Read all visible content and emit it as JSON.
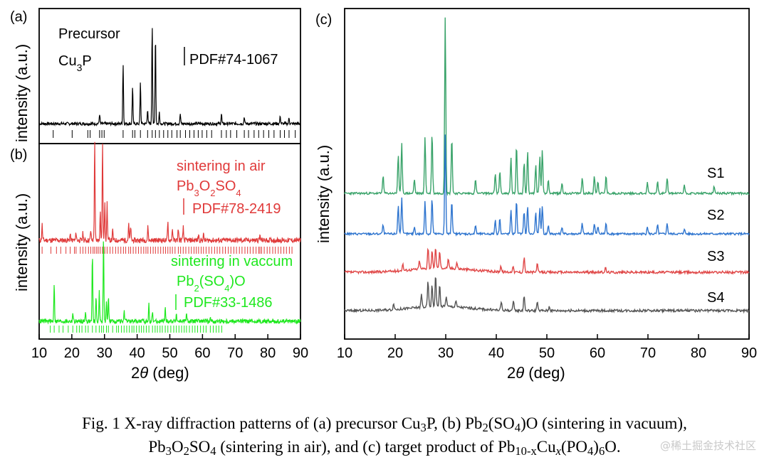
{
  "chart_data": [
    {
      "panel": "(a)",
      "type": "line",
      "title": "Precursor Cu3P",
      "sample": "Precursor",
      "formula": [
        "Cu",
        "3",
        "P"
      ],
      "xlabel_prefix": "2",
      "xlabel_theta": "θ",
      "xlabel_suffix": " (deg)",
      "ylabel": "intensity (a.u.)",
      "x_range": [
        10,
        90
      ],
      "reference": "PDF#74-1067",
      "color": "#000000",
      "peaks": [
        [
          28.5,
          0.1
        ],
        [
          35.7,
          0.6
        ],
        [
          38.6,
          0.38
        ],
        [
          41.0,
          0.42
        ],
        [
          43.2,
          0.15
        ],
        [
          44.6,
          1.0
        ],
        [
          45.6,
          0.9
        ],
        [
          46.8,
          0.12
        ],
        [
          53.2,
          0.1
        ],
        [
          65.8,
          0.1
        ],
        [
          72.8,
          0.07
        ],
        [
          83.8,
          0.08
        ],
        [
          86.5,
          0.06
        ]
      ],
      "ref_lines": [
        14.3,
        20.1,
        24.9,
        25.6,
        28.5,
        29.2,
        29.9,
        35.7,
        38.6,
        39.3,
        41.0,
        43.2,
        44.6,
        45.6,
        46.8,
        48.1,
        49.4,
        50.6,
        52.2,
        53.2,
        54.8,
        56.1,
        57.4,
        58.7,
        59.9,
        61.3,
        62.8,
        65.8,
        67.3,
        68.6,
        70.5,
        72.8,
        74.1,
        75.8,
        77.2,
        78.7,
        80.3,
        81.9,
        83.8,
        85.1,
        86.5,
        88.4
      ]
    },
    {
      "panel": "(b)",
      "type": "line",
      "ylabel": "intensity (a.u.)",
      "x_range": [
        10,
        90
      ],
      "x_ticks": [
        10,
        20,
        30,
        40,
        50,
        60,
        70,
        80,
        90
      ],
      "series": [
        {
          "name": "sintering in air",
          "formula": [
            "Pb",
            "3",
            "O",
            "2",
            "SO",
            "4"
          ],
          "reference": "PDF#78-2419",
          "color": "#e03a3a",
          "peaks": [
            [
              10.9,
              0.16
            ],
            [
              19.5,
              0.06
            ],
            [
              21.3,
              0.08
            ],
            [
              23.4,
              0.07
            ],
            [
              25.8,
              0.1
            ],
            [
              27.0,
              1.0
            ],
            [
              28.7,
              0.3
            ],
            [
              29.4,
              0.98
            ],
            [
              30.1,
              0.4
            ],
            [
              30.8,
              0.38
            ],
            [
              32.5,
              0.1
            ],
            [
              37.4,
              0.16
            ],
            [
              38.0,
              0.14
            ],
            [
              43.3,
              0.14
            ],
            [
              49.4,
              0.18
            ],
            [
              50.8,
              0.12
            ],
            [
              52.6,
              0.12
            ],
            [
              54.1,
              0.13
            ],
            [
              58.8,
              0.06
            ],
            [
              60.3,
              0.06
            ],
            [
              77.6,
              0.05
            ]
          ],
          "ref_lines": [
            10.9,
            13.6,
            15.3,
            16.6,
            18.2,
            19.5,
            20.8,
            21.3,
            22.6,
            23.4,
            24.2,
            25.1,
            25.8,
            26.5,
            27.0,
            27.6,
            28.1,
            28.7,
            29.4,
            30.1,
            30.8,
            31.7,
            32.5,
            33.4,
            34.2,
            35.0,
            35.8,
            36.5,
            37.4,
            38.0,
            38.8,
            39.6,
            40.4,
            41.2,
            42.0,
            42.7,
            43.3,
            44.1,
            44.9,
            45.6,
            46.4,
            47.2,
            48.0,
            48.7,
            49.4,
            50.1,
            50.8,
            51.6,
            52.6,
            53.3,
            54.1,
            54.9,
            55.8,
            56.6,
            57.4,
            58.1,
            58.8,
            59.6,
            60.3,
            61.1,
            62.0,
            62.8,
            63.7,
            64.5,
            65.3,
            66.2,
            67.0,
            67.9,
            68.7,
            69.6,
            70.4,
            71.3,
            72.1,
            73.0,
            73.8,
            74.6,
            75.5,
            76.4,
            77.2,
            77.6,
            78.1,
            78.9,
            79.8,
            80.6,
            81.5,
            82.3,
            83.2,
            84.0,
            84.9,
            85.7,
            86.6,
            87.4
          ]
        },
        {
          "name": "sintering in vaccum",
          "formula": [
            "Pb",
            "2",
            "(SO",
            "4",
            ")O"
          ],
          "reference": "PDF#33-1486",
          "color": "#1ee81e",
          "peaks": [
            [
              14.6,
              0.45
            ],
            [
              20.3,
              0.1
            ],
            [
              24.2,
              0.12
            ],
            [
              26.3,
              0.78
            ],
            [
              27.4,
              0.3
            ],
            [
              28.4,
              0.35
            ],
            [
              29.7,
              1.0
            ],
            [
              30.6,
              0.22
            ],
            [
              31.2,
              0.3
            ],
            [
              36.0,
              0.12
            ],
            [
              43.6,
              0.2
            ],
            [
              44.7,
              0.12
            ],
            [
              48.6,
              0.15
            ],
            [
              52.0,
              0.1
            ],
            [
              55.1,
              0.08
            ],
            [
              62.4,
              0.06
            ]
          ],
          "ref_lines": [
            13.4,
            14.6,
            16.1,
            17.3,
            18.9,
            20.3,
            21.5,
            22.3,
            23.1,
            24.2,
            25.0,
            26.3,
            27.4,
            28.4,
            29.1,
            29.7,
            30.6,
            31.2,
            32.5,
            33.7,
            34.3,
            35.2,
            36.0,
            36.8,
            37.6,
            38.4,
            39.0,
            39.8,
            40.6,
            41.3,
            42.0,
            42.8,
            43.6,
            44.7,
            45.5,
            46.2,
            47.0,
            47.7,
            48.6,
            49.4,
            50.3,
            51.2,
            52.0,
            52.8,
            53.6,
            54.4,
            55.1,
            56.0,
            56.9,
            57.7,
            58.5,
            59.4,
            60.3,
            61.1,
            62.4,
            63.3,
            64.2,
            65.0,
            65.9
          ]
        }
      ]
    },
    {
      "panel": "(c)",
      "type": "line",
      "xlabel_prefix": "2",
      "xlabel_theta": "θ",
      "xlabel_suffix": " (deg)",
      "ylabel": "intensity (a.u.)",
      "x_range": [
        10,
        90
      ],
      "x_ticks": [
        10,
        20,
        30,
        40,
        50,
        60,
        70,
        80,
        90
      ],
      "series": [
        {
          "name": "S1",
          "color": "#3aa36a",
          "peaks": [
            [
              17.6,
              0.1
            ],
            [
              20.6,
              0.22
            ],
            [
              21.3,
              0.28
            ],
            [
              23.8,
              0.08
            ],
            [
              25.9,
              0.32
            ],
            [
              27.3,
              0.34
            ],
            [
              29.9,
              1.0
            ],
            [
              31.2,
              0.32
            ],
            [
              35.9,
              0.08
            ],
            [
              39.8,
              0.11
            ],
            [
              40.7,
              0.13
            ],
            [
              42.9,
              0.2
            ],
            [
              44.0,
              0.27
            ],
            [
              45.5,
              0.18
            ],
            [
              46.2,
              0.24
            ],
            [
              47.8,
              0.16
            ],
            [
              48.6,
              0.21
            ],
            [
              49.1,
              0.25
            ],
            [
              50.3,
              0.08
            ],
            [
              53.0,
              0.06
            ],
            [
              57.0,
              0.09
            ],
            [
              59.4,
              0.1
            ],
            [
              60.1,
              0.07
            ],
            [
              61.7,
              0.1
            ],
            [
              69.9,
              0.06
            ],
            [
              71.9,
              0.07
            ],
            [
              73.8,
              0.09
            ],
            [
              77.2,
              0.05
            ],
            [
              83.1,
              0.04
            ]
          ]
        },
        {
          "name": "S2",
          "color": "#2f75cf",
          "peaks": [
            [
              17.6,
              0.05
            ],
            [
              20.6,
              0.16
            ],
            [
              21.3,
              0.2
            ],
            [
              23.8,
              0.04
            ],
            [
              25.9,
              0.18
            ],
            [
              27.3,
              0.2
            ],
            [
              29.9,
              0.56
            ],
            [
              31.2,
              0.19
            ],
            [
              35.9,
              0.05
            ],
            [
              39.8,
              0.08
            ],
            [
              40.7,
              0.09
            ],
            [
              42.9,
              0.13
            ],
            [
              44.0,
              0.19
            ],
            [
              45.5,
              0.13
            ],
            [
              46.2,
              0.16
            ],
            [
              47.8,
              0.12
            ],
            [
              48.6,
              0.15
            ],
            [
              49.1,
              0.16
            ],
            [
              50.3,
              0.05
            ],
            [
              53.0,
              0.04
            ],
            [
              57.0,
              0.06
            ],
            [
              59.4,
              0.06
            ],
            [
              60.1,
              0.04
            ],
            [
              61.7,
              0.06
            ],
            [
              69.9,
              0.04
            ],
            [
              71.9,
              0.05
            ],
            [
              73.8,
              0.06
            ],
            [
              77.2,
              0.03
            ]
          ]
        },
        {
          "name": "S3",
          "color": "#e04848",
          "peaks": [
            [
              21.5,
              0.03
            ],
            [
              24.8,
              0.04
            ],
            [
              26.5,
              0.1
            ],
            [
              27.3,
              0.08
            ],
            [
              28.0,
              0.1
            ],
            [
              28.8,
              0.08
            ],
            [
              30.5,
              0.04
            ],
            [
              32.2,
              0.03
            ],
            [
              40.9,
              0.03
            ],
            [
              43.3,
              0.03
            ],
            [
              45.5,
              0.07
            ],
            [
              48.1,
              0.04
            ],
            [
              61.6,
              0.02
            ]
          ]
        },
        {
          "name": "S4",
          "color": "#555555",
          "peaks": [
            [
              19.7,
              0.03
            ],
            [
              25.2,
              0.06
            ],
            [
              26.5,
              0.12
            ],
            [
              27.3,
              0.1
            ],
            [
              28.0,
              0.15
            ],
            [
              28.8,
              0.1
            ],
            [
              30.1,
              0.05
            ],
            [
              32.0,
              0.03
            ],
            [
              41.0,
              0.04
            ],
            [
              43.4,
              0.04
            ],
            [
              45.5,
              0.07
            ],
            [
              48.1,
              0.04
            ],
            [
              50.5,
              0.02
            ]
          ]
        }
      ]
    }
  ],
  "caption": {
    "line1_pre": "Fig. 1 X-ray diffraction patterns of (a) precursor Cu",
    "line1_sub1": "3",
    "line1_mid": "P, (b) Pb",
    "line1_sub2": "2",
    "line1_post": "(SO",
    "line1_sub3": "4",
    "line1_end": ")O (sintering in vacuum),",
    "line2_a": "Pb",
    "line2_s1": "3",
    "line2_b": "O",
    "line2_s2": "2",
    "line2_c": "SO",
    "line2_s3": "4",
    "line2_d": " (sintering in air), and (c) target product of Pb",
    "line2_s4": "10-x",
    "line2_e": "Cu",
    "line2_s5": "x",
    "line2_f": "(PO",
    "line2_s6": "4",
    "line2_g": ")",
    "line2_s7": "6",
    "line2_h": "O."
  },
  "watermark": "@稀土掘金技术社区"
}
